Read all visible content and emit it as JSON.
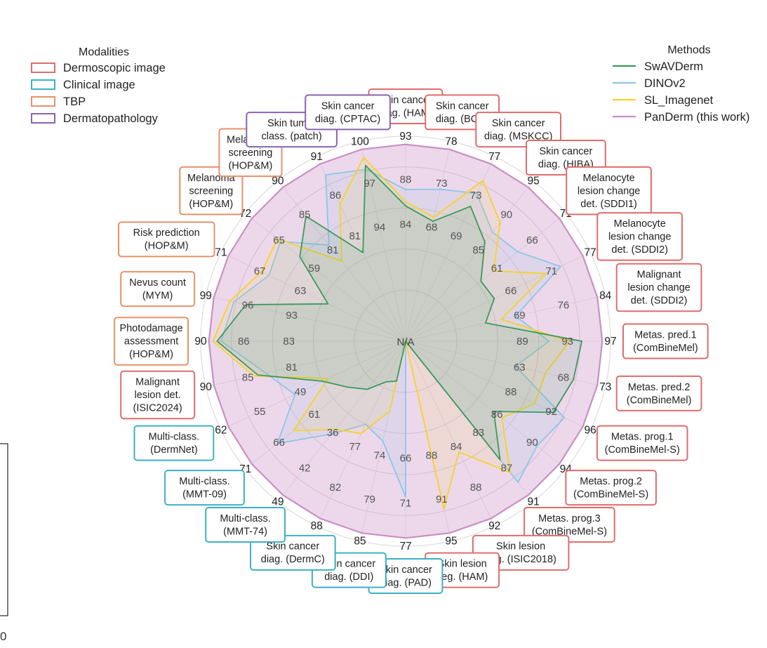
{
  "chart_data": {
    "type": "radar",
    "modalities_title": "Modalities",
    "methods_title": "Methods",
    "center_label": "N/A",
    "modalities": [
      {
        "name": "Dermoscopic image",
        "color": "#e06c6c"
      },
      {
        "name": "Clinical image",
        "color": "#3fb0c6"
      },
      {
        "name": "TBP",
        "color": "#e8916a"
      },
      {
        "name": "Dermatopathology",
        "color": "#8a63b0"
      }
    ],
    "series": [
      {
        "name": "SwAVDerm",
        "color": "#3a9a5c"
      },
      {
        "name": "DINOv2",
        "color": "#8ec5ea"
      },
      {
        "name": "SL_Imagenet",
        "color": "#f5d327"
      },
      {
        "name": "PanDerm (this work)",
        "color": "#c98fc3"
      }
    ],
    "axes": [
      {
        "label": "Skin cancer\ndiag. (HAM)",
        "modality": "Dermoscopic image",
        "ticks": [
          "93",
          "88",
          "84"
        ],
        "values": {
          "SwAVDerm": 0.66,
          "DINOv2": 0.74,
          "SL_Imagenet": 0.68,
          "PanDerm (this work)": 0.96
        }
      },
      {
        "label": "Skin cancer\ndiag. (BCN)",
        "modality": "Dermoscopic image",
        "ticks": [
          "78",
          "73",
          "68"
        ],
        "values": {
          "SwAVDerm": 0.6,
          "DINOv2": 0.76,
          "SL_Imagenet": 0.62,
          "PanDerm (this work)": 0.96
        }
      },
      {
        "label": "Skin cancer\ndiag. (MSKCC)",
        "modality": "Dermoscopic image",
        "ticks": [
          "77",
          "73",
          "69"
        ],
        "values": {
          "SwAVDerm": 0.73,
          "DINOv2": 0.8,
          "SL_Imagenet": 0.87,
          "PanDerm (this work)": 0.96
        }
      },
      {
        "label": "Skin cancer\ndiag. (HIBA)",
        "modality": "Dermoscopic image",
        "ticks": [
          "95",
          "90",
          "85"
        ],
        "values": {
          "SwAVDerm": 0.62,
          "DINOv2": 0.68,
          "SL_Imagenet": 0.74,
          "PanDerm (this work)": 0.96
        }
      },
      {
        "label": "Melanocyte\nlesion change\ndet. (SDDI1)",
        "modality": "Dermoscopic image",
        "ticks": [
          "71",
          "66",
          "61"
        ],
        "values": {
          "SwAVDerm": 0.47,
          "DINOv2": 0.7,
          "SL_Imagenet": 0.55,
          "PanDerm (this work)": 0.96
        }
      },
      {
        "label": "Melanocyte\nlesion change\ndet. (SDDI2)",
        "modality": "Dermoscopic image",
        "ticks": [
          "77",
          "71",
          "66"
        ],
        "values": {
          "SwAVDerm": 0.48,
          "DINOv2": 0.84,
          "SL_Imagenet": 0.76,
          "PanDerm (this work)": 0.96
        }
      },
      {
        "label": "Malignant\nlesion change\ndet. (SDDI2)",
        "modality": "Dermoscopic image",
        "ticks": [
          "84",
          "76",
          "69"
        ],
        "values": {
          "SwAVDerm": 0.4,
          "DINOv2": 0.55,
          "SL_Imagenet": 0.48,
          "PanDerm (this work)": 0.96
        }
      },
      {
        "label": "Metas. pred.1\n(ComBineMel)",
        "modality": "Dermoscopic image",
        "ticks": [
          "97",
          "93",
          "89"
        ],
        "values": {
          "SwAVDerm": 0.86,
          "DINOv2": 0.7,
          "SL_Imagenet": 0.8,
          "PanDerm (this work)": 0.96
        }
      },
      {
        "label": "Metas. pred.2\n(ComBineMel)",
        "modality": "Dermoscopic image",
        "ticks": [
          "73",
          "68",
          "63"
        ],
        "values": {
          "SwAVDerm": 0.84,
          "DINOv2": 0.55,
          "SL_Imagenet": 0.7,
          "PanDerm (this work)": 0.96
        }
      },
      {
        "label": "Metas. prog.1\n(ComBineMel-S)",
        "modality": "Dermoscopic image",
        "ticks": [
          "96",
          "92",
          "88"
        ],
        "values": {
          "SwAVDerm": 0.8,
          "DINOv2": 0.86,
          "SL_Imagenet": 0.7,
          "PanDerm (this work)": 0.96
        }
      },
      {
        "label": "Metas. prog.2\n(ComBineMel-S)",
        "modality": "Dermoscopic image",
        "ticks": [
          "94",
          "90",
          "86"
        ],
        "values": {
          "SwAVDerm": 0.55,
          "DINOv2": 0.82,
          "SL_Imagenet": 0.6,
          "PanDerm (this work)": 0.96
        }
      },
      {
        "label": "Metas. prog.3\n(ComBineMel-S)",
        "modality": "Dermoscopic image",
        "ticks": [
          "91",
          "87",
          "83"
        ],
        "values": {
          "SwAVDerm": 0.74,
          "DINOv2": 0.88,
          "SL_Imagenet": 0.82,
          "PanDerm (this work)": 0.96
        }
      },
      {
        "label": "Skin lesion\nseg. (ISIC2018)",
        "modality": "Dermoscopic image",
        "ticks": [
          "92",
          "88",
          "84"
        ],
        "values": {
          "SwAVDerm": 0.0,
          "DINOv2": 0.0,
          "SL_Imagenet": 0.6,
          "PanDerm (this work)": 0.96
        }
      },
      {
        "label": "Skin lesion\nseg. (HAM)",
        "modality": "Dermoscopic image",
        "ticks": [
          "95",
          "91",
          "88"
        ],
        "values": {
          "SwAVDerm": 0.0,
          "DINOv2": 0.0,
          "SL_Imagenet": 0.84,
          "PanDerm (this work)": 0.96
        }
      },
      {
        "label": "Skin cancer\ndiag. (PAD)",
        "modality": "Clinical image",
        "ticks": [
          "77",
          "71",
          "66"
        ],
        "values": {
          "SwAVDerm": 0.0,
          "DINOv2": 0.76,
          "SL_Imagenet": 0.0,
          "PanDerm (this work)": 0.96
        }
      },
      {
        "label": "Skin cancer\ndiag. (DDI)",
        "modality": "Clinical image",
        "ticks": [
          "85",
          "79",
          "74"
        ],
        "values": {
          "SwAVDerm": 0.2,
          "DINOv2": 0.5,
          "SL_Imagenet": 0.35,
          "PanDerm (this work)": 0.96
        }
      },
      {
        "label": "Skin cancer\ndiag. (DermC)",
        "modality": "Clinical image",
        "ticks": [
          "88",
          "82",
          "77"
        ],
        "values": {
          "SwAVDerm": 0.22,
          "DINOv2": 0.45,
          "SL_Imagenet": 0.5,
          "PanDerm (this work)": 0.96
        }
      },
      {
        "label": "Multi-class.\n(MMT-74)",
        "modality": "Clinical image",
        "ticks": [
          "49",
          "42",
          "36"
        ],
        "values": {
          "SwAVDerm": 0.3,
          "DINOv2": 0.58,
          "SL_Imagenet": 0.55,
          "PanDerm (this work)": 0.96
        }
      },
      {
        "label": "Multi-class.\n(MMT-09)",
        "modality": "Clinical image",
        "ticks": [
          "71",
          "66",
          "61"
        ],
        "values": {
          "SwAVDerm": 0.36,
          "DINOv2": 0.8,
          "SL_Imagenet": 0.7,
          "PanDerm (this work)": 0.96
        }
      },
      {
        "label": "Multi-class.\n(DermNet)",
        "modality": "Clinical image",
        "ticks": [
          "62",
          "55",
          "49"
        ],
        "values": {
          "SwAVDerm": 0.45,
          "DINOv2": 0.6,
          "SL_Imagenet": 0.42,
          "PanDerm (this work)": 0.96
        }
      },
      {
        "label": "Malignant\nlesion det.\n(ISIC2024)",
        "modality": "Dermoscopic image",
        "ticks": [
          "90",
          "85",
          "81"
        ],
        "values": {
          "SwAVDerm": 0.74,
          "DINOv2": 0.7,
          "SL_Imagenet": 0.76,
          "PanDerm (this work)": 0.96
        }
      },
      {
        "label": "Photodamage\nassessment\n(HOP&M)",
        "modality": "TBP",
        "ticks": [
          "90",
          "86",
          "83"
        ],
        "values": {
          "SwAVDerm": 0.92,
          "DINOv2": 0.9,
          "SL_Imagenet": 0.94,
          "PanDerm (this work)": 0.96
        }
      },
      {
        "label": "Nevus count\n(MYM)",
        "modality": "TBP",
        "ticks": [
          "99",
          "96",
          "93"
        ],
        "values": {
          "SwAVDerm": 0.8,
          "DINOv2": 0.86,
          "SL_Imagenet": 0.88,
          "PanDerm (this work)": 0.96
        }
      },
      {
        "label": "Risk prediction\n(HOP&M)",
        "modality": "TBP",
        "ticks": [
          "71",
          "67",
          "63"
        ],
        "values": {
          "SwAVDerm": 0.42,
          "DINOv2": 0.74,
          "SL_Imagenet": 0.78,
          "PanDerm (this work)": 0.96
        }
      },
      {
        "label": "Melanoma\nscreening\n(HOP&M)",
        "modality": "TBP",
        "ticks": [
          "72",
          "65",
          "59"
        ],
        "values": {
          "SwAVDerm": 0.66,
          "DINOv2": 0.78,
          "SL_Imagenet": 0.8,
          "PanDerm (this work)": 0.96
        }
      },
      {
        "label": "Melanoma\nscreening\n(HOP&M)",
        "modality": "TBP",
        "ticks": [
          "90",
          "85",
          "81"
        ],
        "values": {
          "SwAVDerm": 0.78,
          "DINOv2": 0.6,
          "SL_Imagenet": 0.5,
          "PanDerm (this work)": 0.96
        }
      },
      {
        "label": "Skin tumor\nclass. (patch)",
        "modality": "Dermatopathology",
        "ticks": [
          "91",
          "86",
          "81"
        ],
        "values": {
          "SwAVDerm": 0.48,
          "DINOv2": 0.9,
          "SL_Imagenet": 0.74,
          "PanDerm (this work)": 0.96
        }
      },
      {
        "label": "Skin cancer\ndiag. (CPTAC)",
        "modality": "Dermatopathology",
        "ticks": [
          "100",
          "97",
          "94"
        ],
        "values": {
          "SwAVDerm": 0.88,
          "DINOv2": 0.86,
          "SL_Imagenet": 0.92,
          "PanDerm (this work)": 0.96
        }
      }
    ],
    "ring_fractions": [
      0.35,
      0.57,
      0.79,
      1.0
    ],
    "grid": true,
    "legend_placement": "top-left and top-right"
  },
  "left_fragment": "0"
}
